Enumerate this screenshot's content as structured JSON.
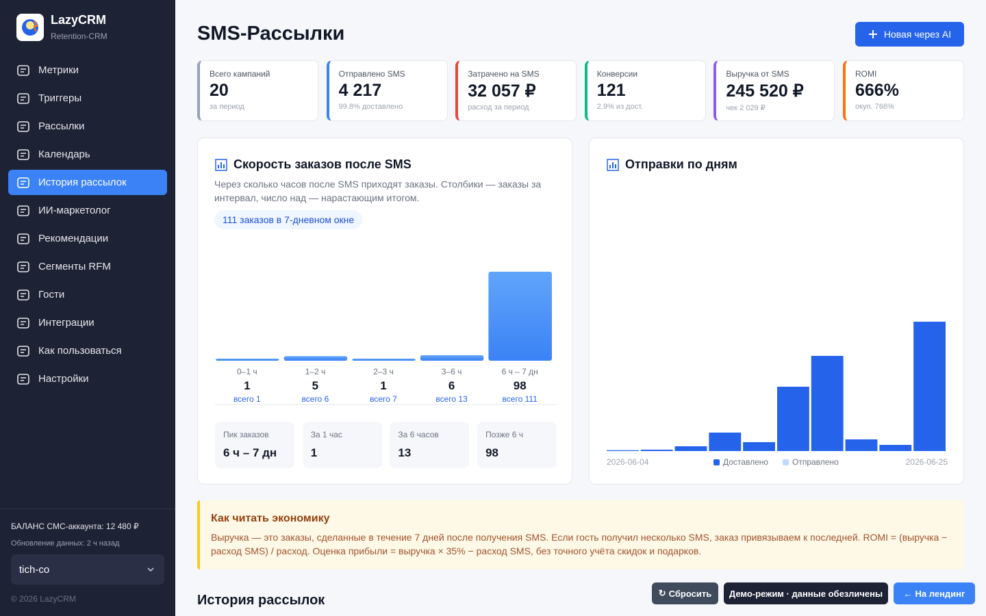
{
  "sidebar": {
    "brand": "LazyCRM",
    "tagline": "Retention-CRM",
    "nav": [
      "Метрики",
      "Триггеры",
      "Рассылки",
      "Календарь",
      "История рассылок",
      "ИИ-маркетолог",
      "Рекомендации",
      "Сегменты RFM",
      "Гости",
      "Интеграции",
      "Как пользоваться",
      "Настройки"
    ],
    "active": 4,
    "balance": "БАЛАНС СМС-аккаунта: 12 480 ₽",
    "updated": "Обновление данных: 2 ч назад",
    "account": "tich-co",
    "copyright": "© 2026 LazyCRM"
  },
  "header": {
    "title": "SMS-Рассылки",
    "button": "Новая через AI"
  },
  "stats": [
    {
      "label": "Всего кампаний",
      "value": "20",
      "note": "за период",
      "accent": "#94a3b8"
    },
    {
      "label": "Отправлено SMS",
      "value": "4 217",
      "note": "99.8% доставлено",
      "accent": "#3b82f6"
    },
    {
      "label": "Затрачено на SMS",
      "value": "32 057 ₽",
      "note": "расход за период",
      "accent": "#ef4444"
    },
    {
      "label": "Конверсии",
      "value": "121",
      "note": "2.9% из дост.",
      "accent": "#10b981"
    },
    {
      "label": "Выручка от SMS",
      "value": "245 520 ₽",
      "note": "чек 2 029 ₽",
      "accent": "#8b5cf6"
    },
    {
      "label": "ROMI",
      "value": "666%",
      "note": "окуп. 766%",
      "accent": "#f97316"
    }
  ],
  "speed_chart": {
    "type": "bar",
    "title": "Скорость заказов после SMS",
    "subtitle": "Через сколько часов после SMS приходят заказы. Столбики — заказы за интервал, число над — нарастающим итогом.",
    "badge": "111 заказов в 7-дневном окне",
    "categories": [
      "0–1 ч",
      "1–2 ч",
      "2–3 ч",
      "3–6 ч",
      "6 ч – 7 дн"
    ],
    "values": [
      1,
      5,
      1,
      6,
      98
    ],
    "cumulative_labels": [
      "всего 1",
      "всего 6",
      "всего 7",
      "всего 13",
      "всего 111"
    ],
    "color": "#3b82f6",
    "summary": [
      {
        "label": "Пик заказов",
        "value": "6 ч – 7 дн"
      },
      {
        "label": "За 1 час",
        "value": 1
      },
      {
        "label": "За 6 часов",
        "value": 13
      },
      {
        "label": "Позже 6 ч",
        "value": 98
      }
    ]
  },
  "days_chart": {
    "type": "bar",
    "title": "Отправки по дням",
    "categories": [
      "2026-06-04",
      null,
      null,
      null,
      null,
      null,
      null,
      null,
      null,
      "2026-06-25"
    ],
    "series": [
      {
        "name": "Доставлено",
        "color": "#2563eb",
        "values": [
          8,
          17,
          59,
          228,
          110,
          794,
          1175,
          144,
          76,
          1597
        ]
      },
      {
        "name": "Отправлено",
        "color": "#bfdbfe",
        "values": [
          17,
          17,
          59,
          228,
          110,
          794,
          1175,
          144,
          76,
          1597
        ]
      }
    ]
  },
  "notice": {
    "title": "Как читать экономику",
    "text": "Выручка — это заказы, сделанные в течение 7 дней после получения SMS. Если гость получил несколько SMS, заказ привязываем к последней. ROMI = (выручка − расход SMS) / расход. Оценка прибыли = выручка × 35% − расход SMS, без точного учёта скидок и подарков."
  },
  "history": {
    "title": "История рассылок"
  },
  "floating": {
    "reset": "Сбросить",
    "demo": "Демо-режим · данные обезличены",
    "landing": "На лендинг"
  }
}
